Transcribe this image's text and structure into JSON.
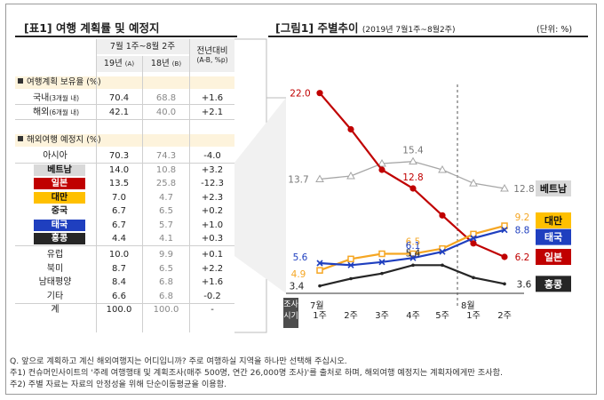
{
  "table": {
    "title": "[표1] 여행 계획률 및 예정지",
    "header_period": "7월 1주~8월 2주",
    "header_col1": "19년",
    "header_col1_sub": "(A)",
    "header_col2": "18년",
    "header_col2_sub": "(B)",
    "header_col3": "전년대비",
    "header_col3_sub": "(A-B, %p)",
    "section1": "여행계획 보유율 (%)",
    "section1_rows": [
      {
        "label": "국내",
        "sub": "(3개월 내)",
        "a": "70.4",
        "b": "68.8",
        "diff": "+1.6"
      },
      {
        "label": "해외",
        "sub": "(6개월 내)",
        "a": "42.1",
        "b": "40.0",
        "diff": "+2.1"
      }
    ],
    "section2": "해외여행 예정지 (%)",
    "section2_rows": [
      {
        "label": "아시아",
        "a": "70.3",
        "b": "74.3",
        "diff": "-4.0",
        "bg": "#ffffff",
        "fg": "#222222"
      },
      {
        "label": "베트남",
        "a": "14.0",
        "b": "10.8",
        "diff": "+3.2",
        "bg": "#d9d9d9",
        "fg": "#111111"
      },
      {
        "label": "일본",
        "a": "13.5",
        "b": "25.8",
        "diff": "-12.3",
        "bg": "#c00000",
        "fg": "#ffffff"
      },
      {
        "label": "대만",
        "a": "7.0",
        "b": "4.7",
        "diff": "+2.3",
        "bg": "#ffc000",
        "fg": "#111111"
      },
      {
        "label": "중국",
        "a": "6.7",
        "b": "6.5",
        "diff": "+0.2",
        "bg": "#ffffff",
        "fg": "#222222"
      },
      {
        "label": "태국",
        "a": "6.7",
        "b": "5.7",
        "diff": "+1.0",
        "bg": "#1f3fbf",
        "fg": "#ffffff"
      },
      {
        "label": "홍콩",
        "a": "4.4",
        "b": "4.1",
        "diff": "+0.3",
        "bg": "#262626",
        "fg": "#ffffff"
      },
      {
        "label": "유럽",
        "a": "10.0",
        "b": "9.9",
        "diff": "+0.1",
        "bg": "#ffffff",
        "fg": "#222222"
      },
      {
        "label": "북미",
        "a": "8.7",
        "b": "6.5",
        "diff": "+2.2",
        "bg": "#ffffff",
        "fg": "#222222"
      },
      {
        "label": "남태평양",
        "a": "8.4",
        "b": "6.8",
        "diff": "+1.6",
        "bg": "#ffffff",
        "fg": "#222222"
      },
      {
        "label": "기타",
        "a": "6.6",
        "b": "6.8",
        "diff": "-0.2",
        "bg": "#ffffff",
        "fg": "#222222"
      },
      {
        "label": "계",
        "a": "100.0",
        "b": "100.0",
        "diff": "-",
        "bg": "#ffffff",
        "fg": "#222222"
      }
    ]
  },
  "figure": {
    "title": "[그림1] 주별추이",
    "period": "(2019년 7월1주~8월2주)",
    "unit": "(단위: %)",
    "x_axis_title_line1": "조사",
    "x_axis_title_line2": "시기",
    "month_jul": "7월",
    "month_aug": "8월"
  },
  "chart_data": {
    "type": "line",
    "title": "",
    "categories": [
      "1주",
      "2주",
      "3주",
      "4주",
      "5주",
      "1주",
      "2주"
    ],
    "series": [
      {
        "name": "베트남",
        "color": "#a6a6a6",
        "marker": "triangle",
        "values": [
          13.7,
          14.0,
          15.2,
          15.4,
          14.6,
          13.3,
          12.8
        ],
        "labels": {
          "0": "13.7",
          "3": "15.4",
          "6": "12.8"
        }
      },
      {
        "name": "일본",
        "color": "#c00000",
        "marker": "circle",
        "values": [
          22.0,
          18.5,
          14.6,
          12.8,
          10.2,
          7.5,
          6.2
        ],
        "labels": {
          "0": "22.0",
          "3": "12.8",
          "6": "6.2"
        }
      },
      {
        "name": "대만",
        "color": "#f5a623",
        "marker": "square",
        "values": [
          4.9,
          6.0,
          6.5,
          6.5,
          7.0,
          8.4,
          9.2
        ],
        "labels": {
          "0": "4.9",
          "3": "6.5",
          "6": "9.2"
        }
      },
      {
        "name": "태국",
        "color": "#1f3fbf",
        "marker": "x",
        "values": [
          5.6,
          5.4,
          5.7,
          6.1,
          6.7,
          8.0,
          8.8
        ],
        "labels": {
          "0": "5.6",
          "3": "6.1",
          "6": "8.8"
        }
      },
      {
        "name": "홍콩",
        "color": "#262626",
        "marker": "none",
        "values": [
          3.4,
          4.1,
          4.6,
          5.4,
          5.4,
          4.2,
          3.6
        ],
        "labels": {
          "0": "3.4",
          "3": "5.4",
          "6": "3.6"
        }
      }
    ],
    "ylim": [
      2,
      23
    ],
    "grid": false,
    "legend_placement": "right"
  },
  "footnotes": [
    "Q. 앞으로 계획하고 계신 해외여행지는 어디입니까? 주로 여행하실 지역을 하나만 선택해 주십시오.",
    "주1) 컨슈머인사이트의 '주례 여행행태 및 계획조사(매주 500명, 연간 26,000명 조사)'를 출처로 하며, 해외여행 예정지는 계획자에게만 조사함.",
    "주2) 주별 자료는 자료의 안정성을 위해 단순이동평균을 이용함."
  ]
}
